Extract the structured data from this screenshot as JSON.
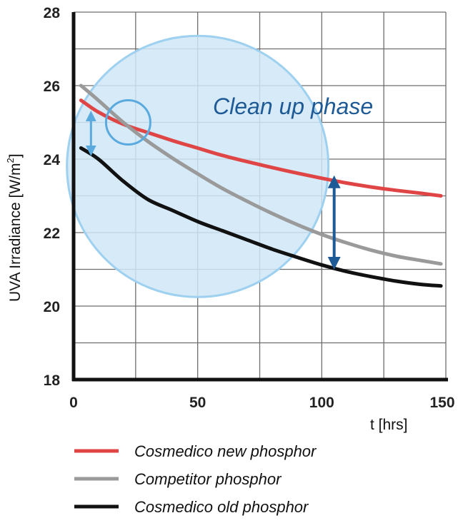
{
  "chart_data": {
    "type": "line",
    "xlabel": "t [hrs]",
    "ylabel_main": "UVA Irradiance  [W/m",
    "ylabel_sup": "2",
    "ylabel_close": "]",
    "xlim": [
      0,
      150
    ],
    "ylim": [
      18,
      28
    ],
    "x_ticks": [
      0,
      50,
      100,
      150
    ],
    "y_ticks": [
      18,
      20,
      22,
      24,
      26,
      28
    ],
    "grid": true,
    "series": [
      {
        "name": "Cosmedico new phosphor",
        "color": "#e04545",
        "x": [
          3,
          10,
          20,
          30,
          40,
          50,
          60,
          70,
          80,
          90,
          100,
          110,
          120,
          130,
          140,
          148
        ],
        "y": [
          25.6,
          25.28,
          24.95,
          24.72,
          24.5,
          24.3,
          24.1,
          23.93,
          23.77,
          23.62,
          23.48,
          23.35,
          23.24,
          23.15,
          23.07,
          23.0
        ]
      },
      {
        "name": "Competitor phosphor",
        "color": "#9a9a9a",
        "x": [
          3,
          10,
          20,
          30,
          40,
          50,
          60,
          70,
          80,
          90,
          100,
          110,
          120,
          130,
          140,
          148
        ],
        "y": [
          26.0,
          25.6,
          25.0,
          24.48,
          24.02,
          23.6,
          23.2,
          22.85,
          22.52,
          22.22,
          21.95,
          21.72,
          21.52,
          21.36,
          21.24,
          21.15
        ]
      },
      {
        "name": "Cosmedico old phosphor",
        "color": "#111111",
        "x": [
          3,
          10,
          20,
          30,
          40,
          50,
          60,
          70,
          80,
          90,
          100,
          110,
          120,
          130,
          140,
          148
        ],
        "y": [
          24.3,
          24.0,
          23.4,
          22.9,
          22.6,
          22.3,
          22.05,
          21.8,
          21.55,
          21.33,
          21.12,
          20.94,
          20.8,
          20.68,
          20.59,
          20.55
        ]
      }
    ],
    "annotation": {
      "text": "Clean up phase",
      "color": "#1e5a96",
      "highlight_center": [
        50,
        23.8
      ],
      "focus_circle_center": [
        22,
        25.0
      ],
      "small_arrow_x": 7,
      "small_arrow_y": [
        24.15,
        25.25
      ],
      "big_arrow_x": 105,
      "big_arrow_y": [
        21.05,
        23.5
      ]
    },
    "legend_position": "bottom"
  }
}
